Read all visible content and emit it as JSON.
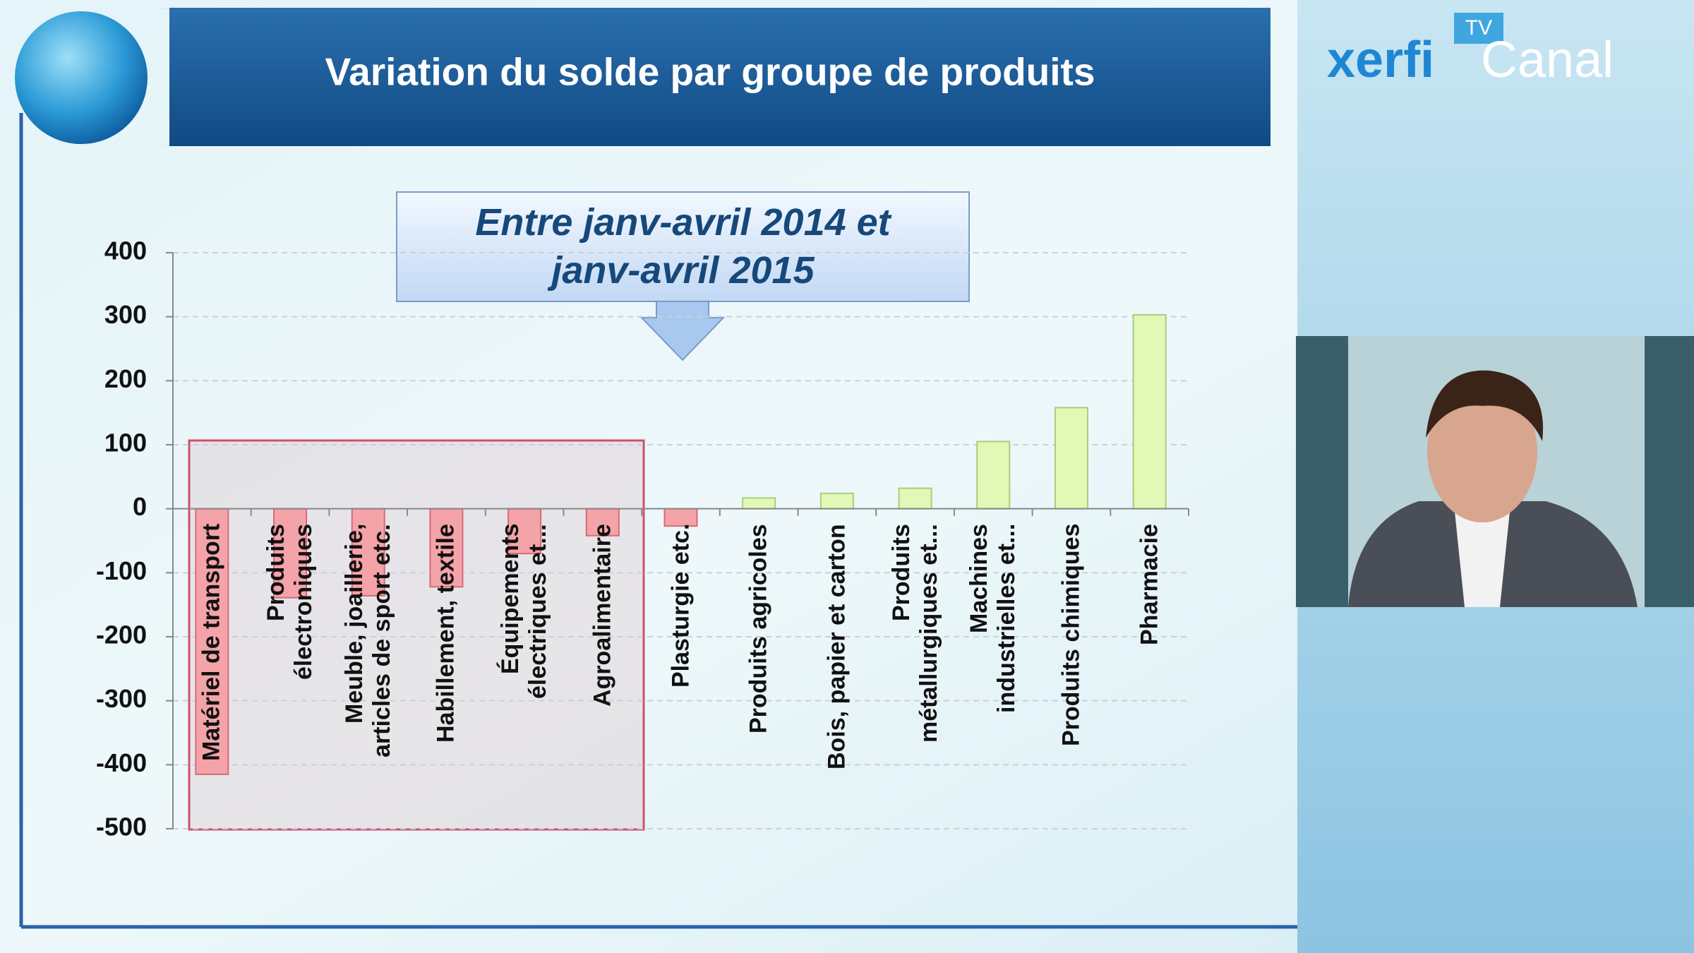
{
  "logo": {
    "brand": "xerfi",
    "channel": "Canal",
    "badge": "TV"
  },
  "chart_data": {
    "type": "bar",
    "title": "Variation du solde par groupe de produits",
    "annotation": "Entre janv-avril 2014 et janv-avril 2015",
    "categories": [
      "Matériel de transport",
      "Produits\nélectroniques",
      "Meuble, joaillerie,\narticles de sport etc.",
      "Habillement, textile",
      "Équipements\nélectriques et...",
      "Agroalimentaire",
      "Plasturgie etc.",
      "Produits agricoles",
      "Bois, papier et carton",
      "Produits\nmétallurgiques et...",
      "Machines\nindustrielles et...",
      "Produits chimiques",
      "Pharmacie"
    ],
    "values": [
      -415,
      -139,
      -136,
      -122,
      -70,
      -42,
      -27,
      17,
      24,
      32,
      105,
      158,
      303
    ],
    "negative_color": "#f4a3a8",
    "positive_color": "#e2f8b6",
    "ylim": [
      -500,
      400
    ],
    "yticks": [
      -500,
      -400,
      -300,
      -200,
      -100,
      0,
      100,
      200,
      300,
      400
    ],
    "grid": true
  }
}
